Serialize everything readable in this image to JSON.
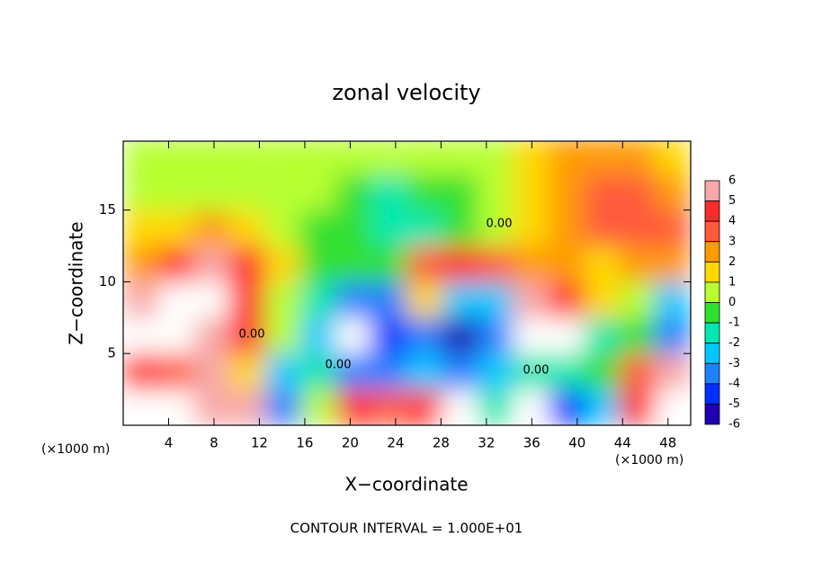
{
  "chart_data": {
    "type": "heatmap",
    "title": "zonal velocity",
    "x_label": "X−coordinate",
    "y_label": "Z−coordinate",
    "x_unit": "(×1000 m)",
    "y_unit": "(×1000 m)",
    "footer": "CONTOUR INTERVAL = 1.000E+01",
    "contour_labels": [
      "0.00",
      "0.00",
      "0.00",
      "0.00"
    ],
    "xlim": [
      0,
      50
    ],
    "ylim": [
      0,
      19.8
    ],
    "xticks": [
      4,
      8,
      12,
      16,
      20,
      24,
      28,
      32,
      36,
      40,
      44,
      48
    ],
    "yticks": [
      5,
      10,
      15
    ],
    "x": [
      1.6,
      4.7,
      7.8,
      10.9,
      14.1,
      17.2,
      20.3,
      23.4,
      26.6,
      29.7,
      32.8,
      35.9,
      39.1,
      42.2,
      45.3,
      48.4
    ],
    "y": [
      1.25,
      3.75,
      6.25,
      8.75,
      11.25,
      13.75,
      16.25,
      18.75
    ],
    "values": [
      [
        7,
        7,
        5,
        6,
        -4,
        0,
        4,
        3,
        4,
        7,
        -2,
        -7,
        -5,
        -3,
        4,
        7
      ],
      [
        4,
        3,
        5,
        1,
        -3,
        -2,
        -4,
        -4,
        -3,
        -4,
        -3,
        -2,
        -2,
        -1,
        3,
        6
      ],
      [
        7,
        7,
        5,
        4,
        0,
        -3,
        -7,
        -5,
        -4,
        -6,
        -4,
        7,
        7,
        -2,
        -1,
        -4
      ],
      [
        6,
        7,
        7,
        4,
        0,
        -2,
        -4,
        -4,
        1,
        -3,
        -3,
        5,
        4,
        1,
        0,
        -3
      ],
      [
        2,
        4,
        5,
        4,
        1,
        -1,
        -1,
        -1,
        3,
        4,
        3,
        2.5,
        2,
        1.5,
        2,
        2.5
      ],
      [
        1,
        1.5,
        2,
        1.5,
        0.5,
        -0.5,
        -1,
        -1.5,
        -2,
        -1,
        0.5,
        1.5,
        2,
        3,
        3.5,
        3
      ],
      [
        0.5,
        0.6,
        0.7,
        0.8,
        0.6,
        0.2,
        -0.5,
        -1.5,
        -1,
        -0.5,
        0.2,
        1.5,
        2.5,
        3,
        3,
        2
      ],
      [
        0.5,
        0.5,
        0.5,
        0.5,
        0.8,
        0.5,
        0.3,
        0.2,
        0,
        0,
        0.3,
        1,
        2,
        2.5,
        2,
        1
      ]
    ],
    "colorbar": {
      "levels": [
        6,
        5,
        4,
        3,
        2,
        1,
        0,
        -1,
        -2,
        -3,
        -4,
        -5,
        -6
      ],
      "colors": [
        "#f7a8a8",
        "#ff2a2a",
        "#ff5a3a",
        "#ff9a00",
        "#ffd800",
        "#b8ff30",
        "#30e030",
        "#00e8b0",
        "#00c8ff",
        "#2080ff",
        "#0030ff",
        "#2000b0"
      ],
      "out_of_range_color": "#ffffff"
    }
  }
}
